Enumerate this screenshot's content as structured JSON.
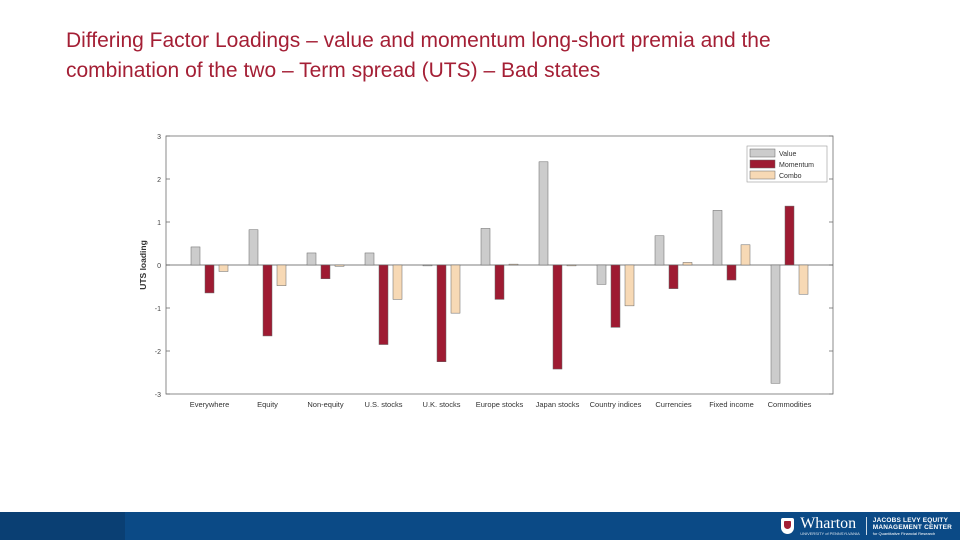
{
  "slide": {
    "title_line1": "Differing Factor Loadings – value and momentum long-short premia and the",
    "title_line2": "combination of the two – Term spread (UTS) – Bad states"
  },
  "footer": {
    "logo_text": "Wharton",
    "logo_subtext": "UNIVERSITY of PENNSYLVANIA",
    "center_line1": "JACOBS LEVY EQUITY",
    "center_line2": "MANAGEMENT CENTER",
    "center_line3": "for Quantitative Financial Research"
  },
  "chart_data": {
    "type": "bar",
    "title": "",
    "xlabel": "",
    "ylabel": "UTS loading",
    "ylim": [
      -3,
      3
    ],
    "yticks": [
      3,
      2,
      1,
      0,
      -1,
      -2,
      -3
    ],
    "legend_position": "top-right",
    "categories": [
      "Everywhere",
      "Equity",
      "Non-equity",
      "U.S. stocks",
      "U.K. stocks",
      "Europe stocks",
      "Japan stocks",
      "Country indices",
      "Currencies",
      "Fixed income",
      "Commodities"
    ],
    "series": [
      {
        "name": "Value",
        "color": "#cccccc",
        "values": [
          0.42,
          0.82,
          0.28,
          0.28,
          -0.02,
          0.85,
          2.4,
          -0.45,
          0.68,
          1.27,
          -2.75
        ]
      },
      {
        "name": "Momentum",
        "color": "#9e1b32",
        "values": [
          -0.65,
          -1.65,
          -0.32,
          -1.85,
          -2.25,
          -0.8,
          -2.42,
          -1.45,
          -0.55,
          -0.35,
          1.37
        ]
      },
      {
        "name": "Combo",
        "color": "#f7d9b5",
        "values": [
          -0.15,
          -0.48,
          -0.03,
          -0.8,
          -1.12,
          0.02,
          -0.02,
          -0.95,
          0.06,
          0.47,
          -0.68
        ]
      }
    ]
  }
}
